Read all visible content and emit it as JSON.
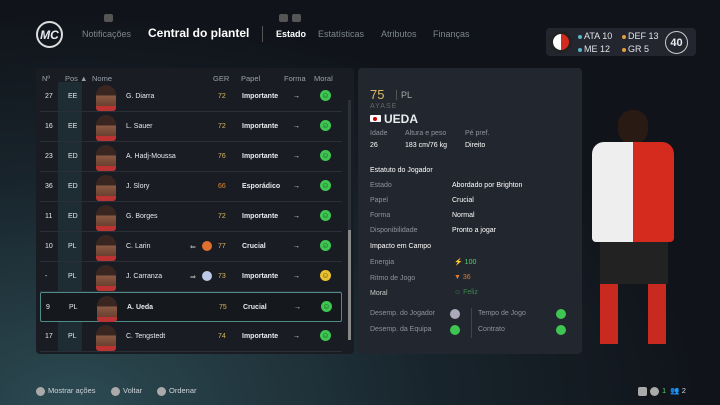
{
  "header": {
    "logo": "MC",
    "notifications": "Notificações",
    "title": "Central do plantel",
    "tabs": [
      "Estado",
      "Estatísticas",
      "Atributos",
      "Finanças"
    ],
    "active_tab": "Estado"
  },
  "team": {
    "ata_label": "ATA",
    "ata": "10",
    "def_label": "DEF",
    "def": "13",
    "me_label": "ME",
    "me": "12",
    "gr_label": "GR",
    "gr": "5",
    "total": "40",
    "colors": {
      "ata": "#5ab5c8",
      "def": "#e0a040"
    }
  },
  "list": {
    "columns": [
      "Nº",
      "Pos",
      "Nome",
      "GER",
      "Papel",
      "Forma",
      "Moral"
    ],
    "rows": [
      {
        "num": "27",
        "pos": "EE",
        "name": "G. Diarra",
        "ger": "72",
        "role": "Importante",
        "form": "→",
        "moral": "happy"
      },
      {
        "num": "16",
        "pos": "EE",
        "name": "L. Sauer",
        "ger": "72",
        "role": "Importante",
        "form": "→",
        "moral": "happy"
      },
      {
        "num": "23",
        "pos": "ED",
        "name": "A. Hadj-Moussa",
        "ger": "76",
        "role": "Importante",
        "form": "→",
        "moral": "happy"
      },
      {
        "num": "36",
        "pos": "ED",
        "name": "J. Slory",
        "ger": "66",
        "role": "Esporádico",
        "form": "→",
        "moral": "happy"
      },
      {
        "num": "11",
        "pos": "ED",
        "name": "G. Borges",
        "ger": "72",
        "role": "Importante",
        "form": "→",
        "moral": "happy"
      },
      {
        "num": "10",
        "pos": "PL",
        "name": "C. Larin",
        "ger": "77",
        "role": "Crucial",
        "form": "→",
        "moral": "happy",
        "transfer": "⇐"
      },
      {
        "num": "-",
        "pos": "PL",
        "name": "J. Carranza",
        "ger": "73",
        "role": "Importante",
        "form": "→",
        "moral": "neutral",
        "transfer": "⇒"
      },
      {
        "num": "9",
        "pos": "PL",
        "name": "A. Ueda",
        "ger": "75",
        "role": "Crucial",
        "form": "→",
        "moral": "happy",
        "selected": true
      },
      {
        "num": "17",
        "pos": "PL",
        "name": "C. Tengstedt",
        "ger": "74",
        "role": "Importante",
        "form": "→",
        "moral": "happy"
      }
    ]
  },
  "detail": {
    "ovr": "75",
    "pos": "PL",
    "first_name": "AYASE",
    "last_name": "UEDA",
    "age_label": "Idade",
    "age": "26",
    "hw_label": "Altura e peso",
    "hw": "183 cm/76 kg",
    "foot_label": "Pé pref.",
    "foot": "Direito",
    "status_title": "Estatuto do Jogador",
    "status": [
      {
        "label": "Estado",
        "value": "Abordado por Brighton"
      },
      {
        "label": "Papel",
        "value": "Crucial"
      },
      {
        "label": "Forma",
        "value": "Normal"
      },
      {
        "label": "Disponibilidade",
        "value": "Pronto a jogar"
      }
    ],
    "impact_title": "Impacto em Campo",
    "energy_label": "Energia",
    "energy": "100",
    "sharp_label": "Ritmo de Jogo",
    "sharp": "36",
    "moral_label": "Moral",
    "moral": "Feliz",
    "perf": [
      {
        "label": "Desemp. do Jogador",
        "status": "neutral"
      },
      {
        "label": "Desemp. da Equipa",
        "status": "good"
      },
      {
        "label": "Tempo de Jogo",
        "status": "good"
      },
      {
        "label": "Contrato",
        "status": "good"
      }
    ]
  },
  "footer": {
    "actions": [
      "Mostrar ações",
      "Voltar",
      "Ordenar"
    ],
    "count1": "1",
    "count2": "2"
  }
}
